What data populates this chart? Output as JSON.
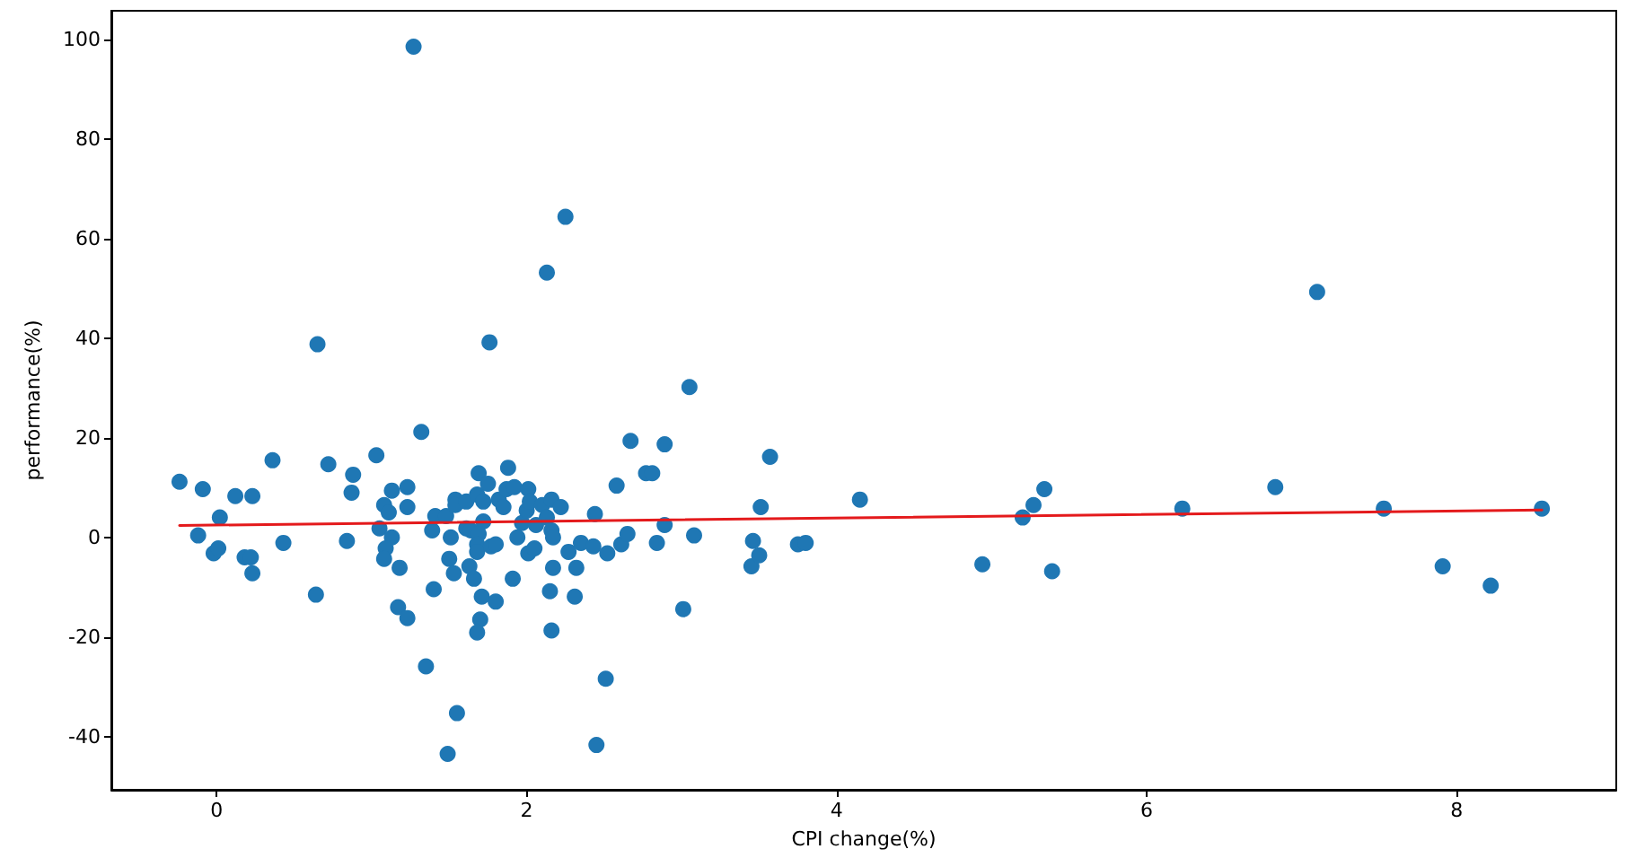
{
  "chart_data": {
    "type": "scatter",
    "xlabel": "CPI change(%)",
    "ylabel": "performance(%)",
    "xlim": [
      -0.68,
      9.03
    ],
    "ylim": [
      -50.7,
      105.8
    ],
    "xticks": [
      0,
      2,
      4,
      6,
      8
    ],
    "yticks": [
      -40,
      -20,
      0,
      20,
      40,
      60,
      80,
      100
    ],
    "grid": false,
    "series": [
      {
        "color": "#1f77b4",
        "marker": "circle",
        "x": [
          -0.24,
          -0.09,
          0.02,
          -0.12,
          -0.02,
          0.01,
          0.12,
          0.23,
          0.18,
          0.22,
          0.23,
          0.43,
          0.36,
          0.65,
          0.72,
          0.64,
          0.84,
          0.87,
          0.88,
          1.03,
          1.05,
          1.08,
          1.11,
          1.13,
          1.23,
          1.23,
          1.13,
          1.09,
          1.08,
          1.18,
          1.17,
          1.23,
          1.27,
          1.32,
          1.35,
          1.55,
          1.49,
          1.4,
          1.39,
          1.41,
          1.48,
          1.51,
          1.5,
          1.53,
          1.54,
          1.54,
          1.61,
          1.61,
          1.63,
          1.66,
          1.69,
          1.68,
          1.72,
          1.75,
          1.72,
          1.64,
          1.69,
          1.68,
          1.68,
          1.71,
          1.7,
          1.68,
          1.76,
          1.77,
          1.8,
          1.8,
          1.82,
          1.85,
          1.88,
          1.87,
          1.92,
          1.91,
          1.94,
          1.97,
          2.01,
          2.0,
          2.02,
          2.01,
          2.05,
          2.06,
          2.1,
          2.13,
          2.16,
          2.22,
          2.16,
          2.17,
          2.17,
          2.15,
          2.16,
          2.13,
          2.25,
          2.27,
          2.32,
          2.31,
          2.35,
          2.44,
          2.43,
          2.51,
          2.45,
          2.52,
          2.58,
          2.61,
          2.65,
          2.67,
          2.77,
          2.81,
          2.84,
          2.89,
          2.89,
          3.01,
          3.05,
          3.08,
          3.45,
          3.46,
          3.5,
          3.51,
          3.57,
          3.75,
          3.8,
          4.15,
          4.94,
          5.2,
          5.27,
          5.34,
          5.39,
          6.23,
          6.83,
          7.1,
          7.53,
          7.91,
          8.22,
          8.55
        ],
        "values": [
          11.2,
          9.7,
          4.0,
          0.4,
          -3.2,
          -2.2,
          8.3,
          8.3,
          -4.0,
          -4.0,
          -7.2,
          -1.1,
          15.5,
          38.8,
          14.7,
          -11.5,
          -0.7,
          9.0,
          12.6,
          16.5,
          1.8,
          6.5,
          5.0,
          9.4,
          10.1,
          6.1,
          0.0,
          -2.2,
          -4.3,
          -6.1,
          -14.0,
          -16.2,
          98.6,
          21.2,
          -25.9,
          -35.3,
          -43.5,
          -10.4,
          1.4,
          4.3,
          4.3,
          0.0,
          -4.3,
          -7.2,
          7.6,
          6.5,
          7.2,
          1.8,
          -5.8,
          -8.3,
          12.9,
          8.6,
          7.2,
          10.8,
          3.2,
          1.4,
          0.7,
          -1.4,
          -2.9,
          -11.9,
          -16.5,
          -19.1,
          39.2,
          -1.8,
          -1.4,
          -12.9,
          7.6,
          6.1,
          14.0,
          9.7,
          10.1,
          -8.3,
          0.0,
          2.9,
          9.7,
          5.4,
          7.2,
          -3.2,
          -2.2,
          2.5,
          6.5,
          4.0,
          7.6,
          6.1,
          1.4,
          0.0,
          -6.1,
          -10.8,
          -18.7,
          53.2,
          64.4,
          -2.9,
          -6.1,
          -11.9,
          -1.1,
          4.7,
          -1.8,
          -28.4,
          -41.7,
          -3.2,
          10.4,
          -1.4,
          0.7,
          19.4,
          12.9,
          12.9,
          -1.1,
          18.7,
          2.5,
          -14.4,
          30.2,
          0.4,
          -5.8,
          -0.7,
          -3.6,
          6.1,
          16.2,
          -1.4,
          -1.1,
          7.6,
          -5.4,
          4.0,
          6.5,
          9.7,
          -6.8,
          5.8,
          10.1,
          49.3,
          5.8,
          -5.8,
          -9.7,
          5.8
        ]
      },
      {
        "type": "line",
        "color": "#e41a1c",
        "marker": "none",
        "line_style": "solid",
        "x": [
          -0.24,
          8.55
        ],
        "values": [
          2.4,
          5.5
        ]
      }
    ]
  }
}
